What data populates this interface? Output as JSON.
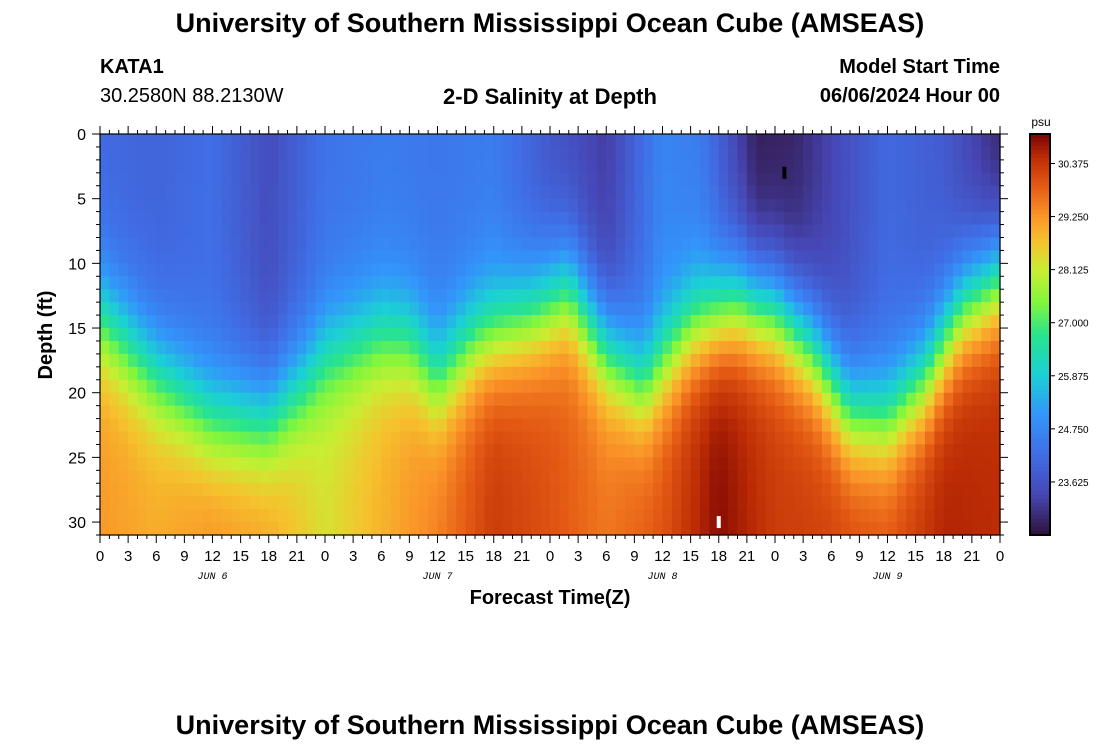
{
  "header": {
    "title": "University of Southern Mississippi Ocean Cube (AMSEAS)",
    "station": "KATA1",
    "coordinates": "30.2580N  88.2130W",
    "subtitle": "2-D Salinity at Depth",
    "model_start_label": "Model Start Time",
    "model_start_value": "06/06/2024 Hour 00"
  },
  "footer": {
    "title": "University of Southern Mississippi Ocean Cube (AMSEAS)"
  },
  "chart_data": {
    "type": "heatmap",
    "title": "2-D Salinity at Depth",
    "xlabel": "Forecast Time(Z)",
    "ylabel": "Depth (ft)",
    "x_unit": "hours since 06/06/2024 00Z",
    "x_range": [
      0,
      96
    ],
    "y_range": [
      0,
      31
    ],
    "x_tick_hours": [
      0,
      3,
      6,
      9,
      12,
      15,
      18,
      21,
      24,
      27,
      30,
      33,
      36,
      39,
      42,
      45,
      48,
      51,
      54,
      57,
      60,
      63,
      66,
      69,
      72,
      75,
      78,
      81,
      84,
      87,
      90,
      93,
      96
    ],
    "x_tick_labels": [
      "0",
      "3",
      "6",
      "9",
      "12",
      "15",
      "18",
      "21",
      "0",
      "3",
      "6",
      "9",
      "12",
      "15",
      "18",
      "21",
      "0",
      "3",
      "6",
      "9",
      "12",
      "15",
      "18",
      "21",
      "0",
      "3",
      "6",
      "9",
      "12",
      "15",
      "18",
      "21",
      "0"
    ],
    "day_labels": [
      {
        "label": "JUN 6",
        "hour": 12
      },
      {
        "label": "JUN 7",
        "hour": 36
      },
      {
        "label": "JUN 8",
        "hour": 60
      },
      {
        "label": "JUN 9",
        "hour": 84
      }
    ],
    "y_ticks": [
      0,
      5,
      10,
      15,
      20,
      25,
      30
    ],
    "colorbar": {
      "unit": "psu",
      "min": 22.5,
      "max": 31.0,
      "ticks": [
        30.375,
        29.25,
        28.125,
        27.0,
        25.875,
        24.75,
        23.625
      ],
      "tick_labels": [
        "30.375",
        "29.250",
        "28.125",
        "27.000",
        "25.875",
        "24.750",
        "23.625"
      ]
    },
    "halocline_depth_ft": {
      "hours": [
        0,
        6,
        12,
        18,
        22,
        24,
        30,
        33,
        36,
        40,
        46,
        50,
        54,
        58,
        63,
        68,
        72,
        76,
        80,
        84,
        88,
        92,
        96
      ],
      "values": [
        14.0,
        18.5,
        22.0,
        22.0,
        19.0,
        17.0,
        15.5,
        16.0,
        19.0,
        16.0,
        14.0,
        12.0,
        16.5,
        19.5,
        15.0,
        13.0,
        13.5,
        16.5,
        21.5,
        22.0,
        19.0,
        13.5,
        11.0
      ]
    },
    "surface_salinity_psu": {
      "hours": [
        0,
        6,
        12,
        18,
        24,
        30,
        36,
        42,
        48,
        54,
        58,
        60,
        64,
        70,
        74,
        80,
        84,
        90,
        96
      ],
      "values": [
        24.1,
        24.0,
        24.2,
        23.5,
        24.3,
        24.5,
        24.4,
        24.5,
        23.7,
        23.2,
        24.2,
        24.7,
        24.5,
        22.7,
        22.8,
        23.6,
        24.1,
        23.8,
        22.8
      ]
    },
    "bottom_salinity_psu": {
      "hours": [
        0,
        6,
        12,
        18,
        24,
        30,
        36,
        42,
        48,
        54,
        60,
        66,
        72,
        78,
        84,
        90,
        96
      ],
      "values": [
        29.2,
        29.0,
        29.3,
        29.1,
        28.3,
        28.9,
        29.5,
        30.3,
        30.0,
        29.6,
        30.0,
        30.9,
        30.3,
        30.2,
        30.0,
        30.6,
        30.5
      ]
    },
    "markers": [
      {
        "hour": 66,
        "depth_ft": 30,
        "color": "#ffffff"
      },
      {
        "hour": 73,
        "depth_ft": 3,
        "color": "#000000"
      }
    ]
  }
}
